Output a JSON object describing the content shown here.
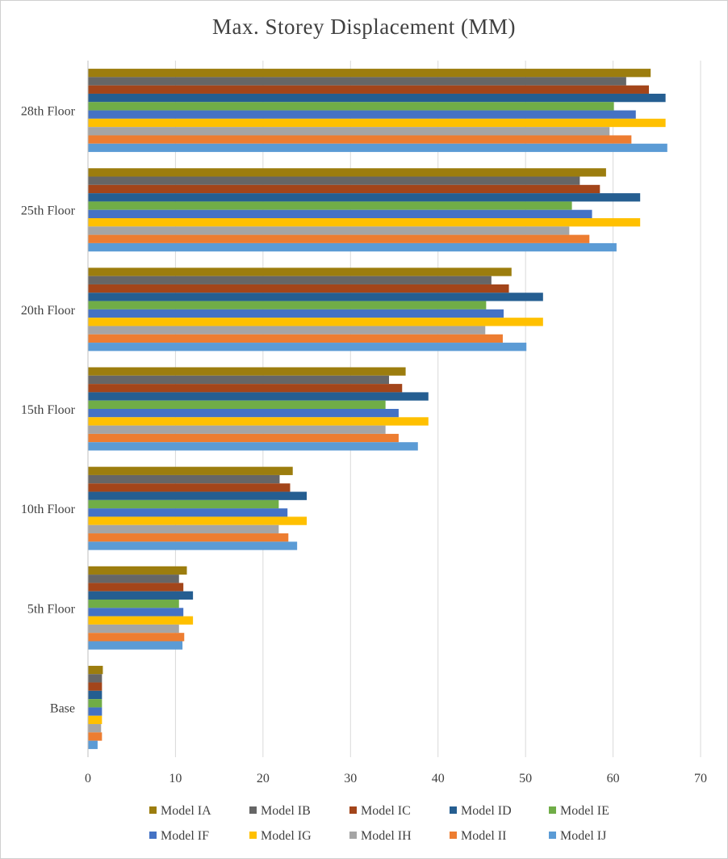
{
  "chart_data": {
    "type": "bar",
    "orientation": "horizontal",
    "title": "Max. Storey Displacement (MM)",
    "xlabel": "",
    "ylabel": "",
    "xlim": [
      0,
      70
    ],
    "x_ticks": [
      0,
      10,
      20,
      30,
      40,
      50,
      60,
      70
    ],
    "grid": "vertical",
    "legend_position": "bottom",
    "categories": [
      "Base",
      "5th Floor",
      "10th Floor",
      "15th Floor",
      "20th Floor",
      "25th Floor",
      "28th Floor"
    ],
    "series": [
      {
        "name": "Model IA",
        "color": "#9C7D0E",
        "values": [
          1.7,
          11.3,
          23.4,
          36.3,
          48.4,
          59.2,
          64.3
        ]
      },
      {
        "name": "Model IB",
        "color": "#666666",
        "values": [
          1.6,
          10.4,
          21.9,
          34.4,
          46.1,
          56.2,
          61.5
        ]
      },
      {
        "name": "Model IC",
        "color": "#A3451A",
        "values": [
          1.6,
          10.9,
          23.1,
          35.9,
          48.1,
          58.5,
          64.1
        ]
      },
      {
        "name": "Model ID",
        "color": "#255E91",
        "values": [
          1.6,
          12.0,
          25.0,
          38.9,
          52.0,
          63.1,
          66.0
        ]
      },
      {
        "name": "Model IE",
        "color": "#70AD47",
        "values": [
          1.6,
          10.4,
          21.8,
          34.0,
          45.5,
          55.3,
          60.1
        ]
      },
      {
        "name": "Model IF",
        "color": "#4472C4",
        "values": [
          1.6,
          10.9,
          22.8,
          35.5,
          47.5,
          57.6,
          62.6
        ]
      },
      {
        "name": "Model IG",
        "color": "#FFC000",
        "values": [
          1.6,
          12.0,
          25.0,
          38.9,
          52.0,
          63.1,
          66.0
        ]
      },
      {
        "name": "Model IH",
        "color": "#A5A5A5",
        "values": [
          1.5,
          10.4,
          21.8,
          34.0,
          45.4,
          55.0,
          59.6
        ]
      },
      {
        "name": "Model II",
        "color": "#ED7D31",
        "values": [
          1.6,
          11.0,
          22.9,
          35.5,
          47.4,
          57.3,
          62.1
        ]
      },
      {
        "name": "Model IJ",
        "color": "#5B9BD5",
        "values": [
          1.1,
          10.8,
          23.9,
          37.7,
          50.1,
          60.4,
          66.2
        ]
      }
    ]
  }
}
